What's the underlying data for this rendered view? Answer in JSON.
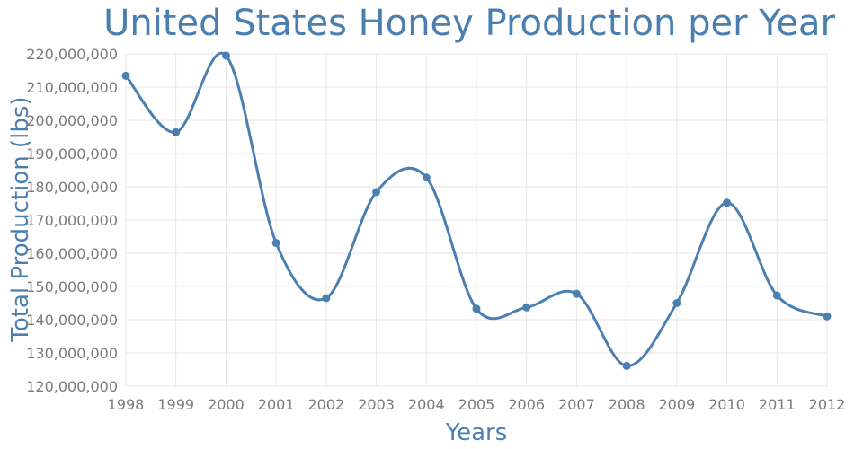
{
  "chart_data": {
    "type": "line",
    "title": "United States Honey Production per Year",
    "xlabel": "Years",
    "ylabel": "Total Production (lbs)",
    "x": [
      1998,
      1999,
      2000,
      2001,
      2002,
      2003,
      2004,
      2005,
      2006,
      2007,
      2008,
      2009,
      2010,
      2011,
      2012
    ],
    "y_ticks": [
      "120,000,000",
      "130,000,000",
      "140,000,000",
      "150,000,000",
      "160,000,000",
      "170,000,000",
      "180,000,000",
      "190,000,000",
      "200,000,000",
      "210,000,000",
      "220,000,000"
    ],
    "ylim": [
      120000000,
      220000000
    ],
    "grid": true,
    "smooth": true,
    "series": [
      {
        "values": [
          213400000,
          196400000,
          219500000,
          163100000,
          146500000,
          178400000,
          182800000,
          143300000,
          143700000,
          147800000,
          126100000,
          145000000,
          175200000,
          147300000,
          141000000
        ],
        "color": "#4a7fb0"
      }
    ]
  }
}
